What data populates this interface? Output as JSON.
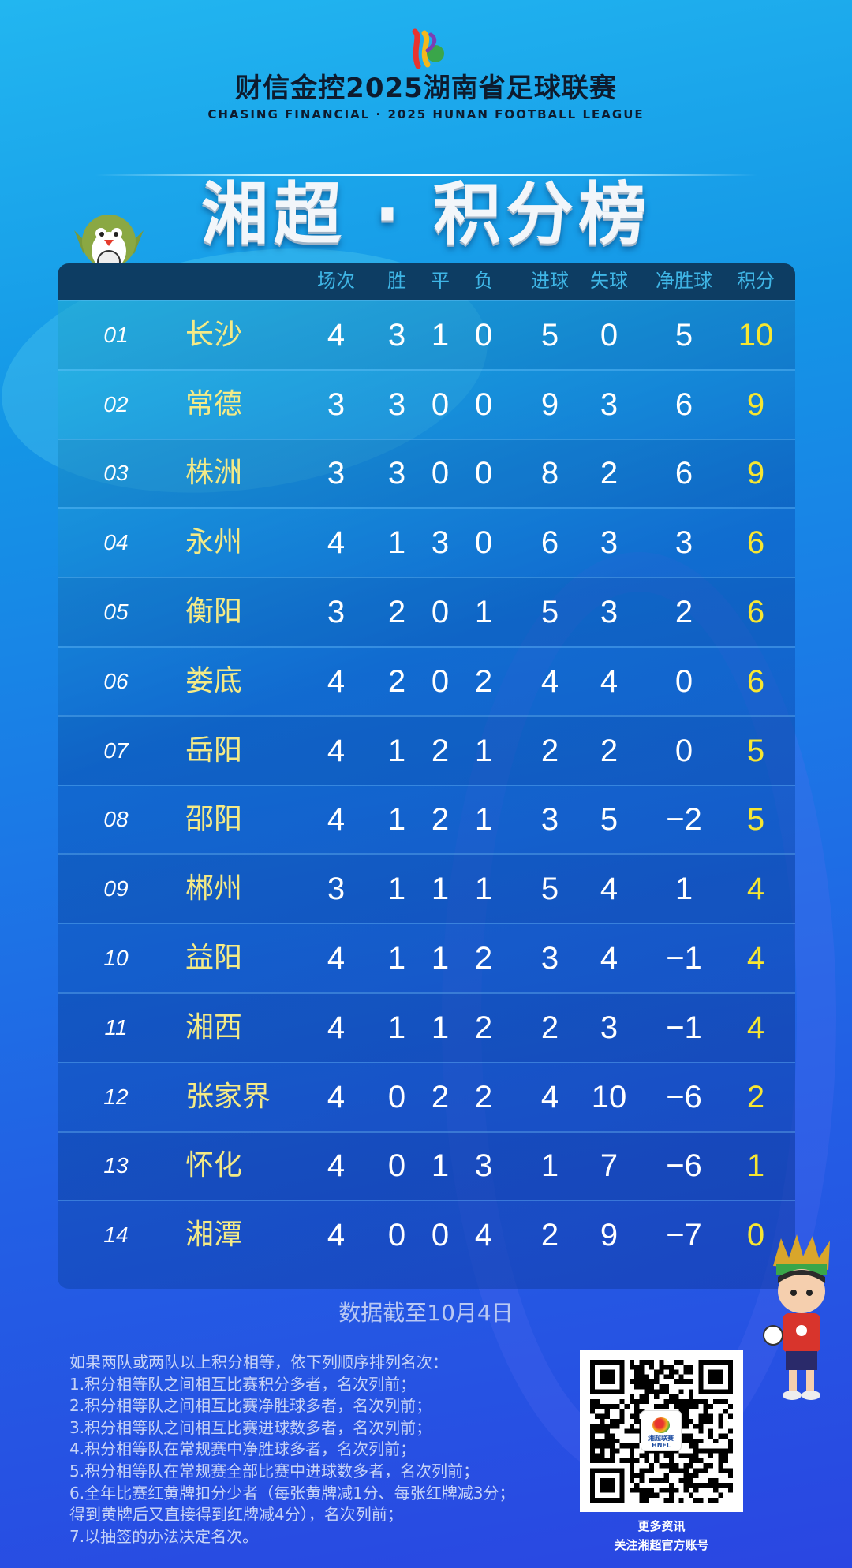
{
  "header": {
    "logo": "hunan-football-league-logo",
    "title_cn": "财信金控2025湖南省足球联赛",
    "title_en": "CHASING FINANCIAL  ·  2025 HUNAN FOOTBALL LEAGUE",
    "main_title": "湘超 · 积分榜"
  },
  "table": {
    "columns": [
      "场次",
      "胜",
      "平",
      "负",
      "进球",
      "失球",
      "净胜球",
      "积分"
    ],
    "rows": [
      {
        "rank": "01",
        "team": "长沙",
        "vals": [
          "4",
          "3",
          "1",
          "0",
          "5",
          "0",
          "5",
          "10"
        ]
      },
      {
        "rank": "02",
        "team": "常德",
        "vals": [
          "3",
          "3",
          "0",
          "0",
          "9",
          "3",
          "6",
          "9"
        ]
      },
      {
        "rank": "03",
        "team": "株洲",
        "vals": [
          "3",
          "3",
          "0",
          "0",
          "8",
          "2",
          "6",
          "9"
        ]
      },
      {
        "rank": "04",
        "team": "永州",
        "vals": [
          "4",
          "1",
          "3",
          "0",
          "6",
          "3",
          "3",
          "6"
        ]
      },
      {
        "rank": "05",
        "team": "衡阳",
        "vals": [
          "3",
          "2",
          "0",
          "1",
          "5",
          "3",
          "2",
          "6"
        ]
      },
      {
        "rank": "06",
        "team": "娄底",
        "vals": [
          "4",
          "2",
          "0",
          "2",
          "4",
          "4",
          "0",
          "6"
        ]
      },
      {
        "rank": "07",
        "team": "岳阳",
        "vals": [
          "4",
          "1",
          "2",
          "1",
          "2",
          "2",
          "0",
          "5"
        ]
      },
      {
        "rank": "08",
        "team": "邵阳",
        "vals": [
          "4",
          "1",
          "2",
          "1",
          "3",
          "5",
          "−2",
          "5"
        ]
      },
      {
        "rank": "09",
        "team": "郴州",
        "vals": [
          "3",
          "1",
          "1",
          "1",
          "5",
          "4",
          "1",
          "4"
        ]
      },
      {
        "rank": "10",
        "team": "益阳",
        "vals": [
          "4",
          "1",
          "1",
          "2",
          "3",
          "4",
          "−1",
          "4"
        ]
      },
      {
        "rank": "11",
        "team": "湘西",
        "vals": [
          "4",
          "1",
          "1",
          "2",
          "2",
          "3",
          "−1",
          "4"
        ]
      },
      {
        "rank": "12",
        "team": "张家界",
        "vals": [
          "4",
          "0",
          "2",
          "2",
          "4",
          "10",
          "−6",
          "2"
        ]
      },
      {
        "rank": "13",
        "team": "怀化",
        "vals": [
          "4",
          "0",
          "1",
          "3",
          "1",
          "7",
          "−6",
          "1"
        ]
      },
      {
        "rank": "14",
        "team": "湘潭",
        "vals": [
          "4",
          "0",
          "0",
          "4",
          "2",
          "9",
          "−7",
          "0"
        ]
      }
    ]
  },
  "date_note": "数据截至10月4日",
  "rules": [
    "如果两队或两队以上积分相等，依下列顺序排列名次：",
    "1.积分相等队之间相互比赛积分多者，名次列前；",
    "2.积分相等队之间相互比赛净胜球多者，名次列前；",
    "3.积分相等队之间相互比赛进球数多者，名次列前；",
    "4.积分相等队在常规赛中净胜球多者，名次列前；",
    "5.积分相等队在常规赛全部比赛中进球数多者，名次列前；",
    "6.全年比赛红黄牌扣分少者（每张黄牌减1分、每张红牌减3分；",
    "得到黄牌后又直接得到红牌减4分），名次列前；",
    "7.以抽签的办法决定名次。"
  ],
  "qr": {
    "caption_1": "更多资讯",
    "caption_2": "关注湘超官方账号",
    "center_logo_text": "湘超联赛 HNFL"
  },
  "colors": {
    "team": "#f4ea86",
    "points": "#f7e631",
    "header_bar": "#0d3d63",
    "header_text": "#3fb6e6"
  }
}
